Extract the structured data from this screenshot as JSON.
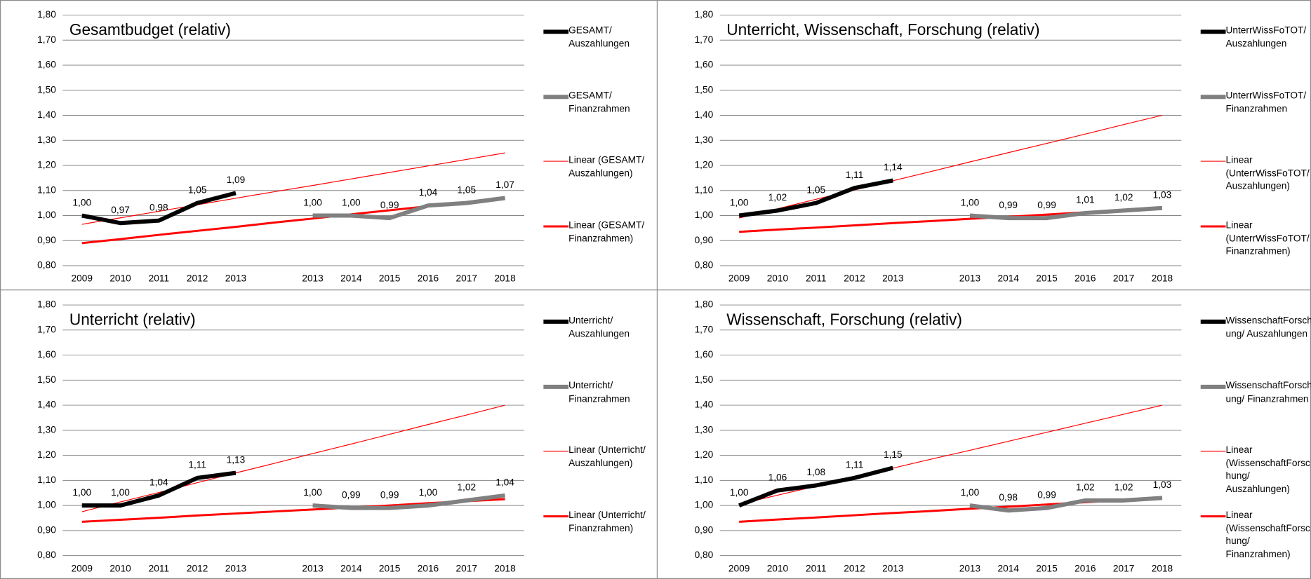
{
  "chart_data": [
    {
      "type": "line",
      "title": "Gesamtbudget (relativ)",
      "categories": [
        "2009",
        "2010",
        "2011",
        "2012",
        "2013",
        null,
        "2013",
        "2014",
        "2015",
        "2016",
        "2017",
        "2018"
      ],
      "ylim": [
        0.8,
        1.8
      ],
      "yticks": [
        {
          "value": 0.8,
          "label": "0,80"
        },
        {
          "value": 0.9,
          "label": "0,90"
        },
        {
          "value": 1.0,
          "label": "1,00"
        },
        {
          "value": 1.1,
          "label": "1,10"
        },
        {
          "value": 1.2,
          "label": "1,20"
        },
        {
          "value": 1.3,
          "label": "1,30"
        },
        {
          "value": 1.4,
          "label": "1,40"
        },
        {
          "value": 1.5,
          "label": "1,50"
        },
        {
          "value": 1.6,
          "label": "1,60"
        },
        {
          "value": 1.7,
          "label": "1,70"
        },
        {
          "value": 1.8,
          "label": "1,80"
        }
      ],
      "grid": true,
      "series": [
        {
          "name": "GESAMT/ Auszahlungen",
          "color": "#000000",
          "width": 5,
          "values": [
            1.0,
            0.97,
            0.98,
            1.05,
            1.09,
            null,
            null,
            null,
            null,
            null,
            null,
            null
          ],
          "value_labels": [
            "1,00",
            "0,97",
            "0,98",
            "1,05",
            "1,09",
            null,
            null,
            null,
            null,
            null,
            null,
            null
          ]
        },
        {
          "name": "GESAMT/ Finanzrahmen",
          "color": "#808080",
          "width": 5,
          "values": [
            null,
            null,
            null,
            null,
            null,
            null,
            1.0,
            1.0,
            0.99,
            1.04,
            1.05,
            1.07
          ],
          "value_labels": [
            null,
            null,
            null,
            null,
            null,
            null,
            "1,00",
            "1,00",
            "0,99",
            "1,04",
            "1,05",
            "1,07"
          ]
        },
        {
          "name": "Linear (GESAMT/ Auszahlungen)",
          "color": "#ff0000",
          "width": 1,
          "values": [
            0.965,
            0.991,
            1.017,
            1.043,
            1.069,
            1.095,
            1.12,
            1.146,
            1.172,
            1.198,
            1.224,
            1.25
          ]
        },
        {
          "name": "Linear (GESAMT/ Finanzrahmen)",
          "color": "#ff0000",
          "width": 2.5,
          "values": [
            0.89,
            0.906,
            0.923,
            0.939,
            0.955,
            0.972,
            0.988,
            1.005,
            1.021,
            1.037,
            1.054,
            1.07
          ]
        }
      ]
    },
    {
      "type": "line",
      "title": "Unterricht, Wissenschaft, Forschung (relativ)",
      "categories": [
        "2009",
        "2010",
        "2011",
        "2012",
        "2013",
        null,
        "2013",
        "2014",
        "2015",
        "2016",
        "2017",
        "2018"
      ],
      "ylim": [
        0.8,
        1.8
      ],
      "yticks": [
        {
          "value": 0.8,
          "label": "0,80"
        },
        {
          "value": 0.9,
          "label": "0,90"
        },
        {
          "value": 1.0,
          "label": "1,00"
        },
        {
          "value": 1.1,
          "label": "1,10"
        },
        {
          "value": 1.2,
          "label": "1,20"
        },
        {
          "value": 1.3,
          "label": "1,30"
        },
        {
          "value": 1.4,
          "label": "1,40"
        },
        {
          "value": 1.5,
          "label": "1,50"
        },
        {
          "value": 1.6,
          "label": "1,60"
        },
        {
          "value": 1.7,
          "label": "1,70"
        },
        {
          "value": 1.8,
          "label": "1,80"
        }
      ],
      "grid": true,
      "series": [
        {
          "name": "UnterrWissFoTOT/ Auszahlungen",
          "color": "#000000",
          "width": 5,
          "values": [
            1.0,
            1.02,
            1.05,
            1.11,
            1.14,
            null,
            null,
            null,
            null,
            null,
            null,
            null
          ],
          "value_labels": [
            "1,00",
            "1,02",
            "1,05",
            "1,11",
            "1,14",
            null,
            null,
            null,
            null,
            null,
            null,
            null
          ]
        },
        {
          "name": "UnterrWissFoTOT/ Finanzrahmen",
          "color": "#808080",
          "width": 5,
          "values": [
            null,
            null,
            null,
            null,
            null,
            null,
            1.0,
            0.99,
            0.99,
            1.01,
            1.02,
            1.03
          ],
          "value_labels": [
            null,
            null,
            null,
            null,
            null,
            null,
            "1,00",
            "0,99",
            "0,99",
            "1,01",
            "1,02",
            "1,03"
          ]
        },
        {
          "name": "Linear (UnterrWissFoTOT/ Auszahlungen)",
          "color": "#ff0000",
          "width": 1,
          "values": [
            0.99,
            1.027,
            1.065,
            1.102,
            1.139,
            1.176,
            1.214,
            1.251,
            1.288,
            1.325,
            1.363,
            1.4
          ]
        },
        {
          "name": "Linear (UnterrWissFoTOT/ Finanzrahmen)",
          "color": "#ff0000",
          "width": 2.5,
          "values": [
            0.935,
            0.944,
            0.952,
            0.961,
            0.97,
            0.978,
            0.987,
            0.995,
            1.004,
            1.013,
            1.021,
            1.03
          ]
        }
      ]
    },
    {
      "type": "line",
      "title": "Unterricht (relativ)",
      "categories": [
        "2009",
        "2010",
        "2011",
        "2012",
        "2013",
        null,
        "2013",
        "2014",
        "2015",
        "2016",
        "2017",
        "2018"
      ],
      "ylim": [
        0.8,
        1.8
      ],
      "yticks": [
        {
          "value": 0.8,
          "label": "0,80"
        },
        {
          "value": 0.9,
          "label": "0,90"
        },
        {
          "value": 1.0,
          "label": "1,00"
        },
        {
          "value": 1.1,
          "label": "1,10"
        },
        {
          "value": 1.2,
          "label": "1,20"
        },
        {
          "value": 1.3,
          "label": "1,30"
        },
        {
          "value": 1.4,
          "label": "1,40"
        },
        {
          "value": 1.5,
          "label": "1,50"
        },
        {
          "value": 1.6,
          "label": "1,60"
        },
        {
          "value": 1.7,
          "label": "1,70"
        },
        {
          "value": 1.8,
          "label": "1,80"
        }
      ],
      "grid": true,
      "series": [
        {
          "name": "Unterricht/ Auszahlungen",
          "color": "#000000",
          "width": 5,
          "values": [
            1.0,
            1.0,
            1.04,
            1.11,
            1.13,
            null,
            null,
            null,
            null,
            null,
            null,
            null
          ],
          "value_labels": [
            "1,00",
            "1,00",
            "1,04",
            "1,11",
            "1,13",
            null,
            null,
            null,
            null,
            null,
            null,
            null
          ]
        },
        {
          "name": "Unterricht/ Finanzrahmen",
          "color": "#808080",
          "width": 5,
          "values": [
            null,
            null,
            null,
            null,
            null,
            null,
            1.0,
            0.99,
            0.99,
            1.0,
            1.02,
            1.04
          ],
          "value_labels": [
            null,
            null,
            null,
            null,
            null,
            null,
            "1,00",
            "0,99",
            "0,99",
            "1,00",
            "1,02",
            "1,04"
          ]
        },
        {
          "name": "Linear (Unterricht/ Auszahlungen)",
          "color": "#ff0000",
          "width": 1,
          "values": [
            0.975,
            1.014,
            1.052,
            1.091,
            1.13,
            1.168,
            1.207,
            1.245,
            1.284,
            1.323,
            1.361,
            1.4
          ]
        },
        {
          "name": "Linear (Unterricht/ Finanzrahmen)",
          "color": "#ff0000",
          "width": 2.5,
          "values": [
            0.935,
            0.943,
            0.951,
            0.96,
            0.968,
            0.976,
            0.984,
            0.992,
            1.0,
            1.009,
            1.017,
            1.025
          ]
        }
      ]
    },
    {
      "type": "line",
      "title": "Wissenschaft, Forschung (relativ)",
      "categories": [
        "2009",
        "2010",
        "2011",
        "2012",
        "2013",
        null,
        "2013",
        "2014",
        "2015",
        "2016",
        "2017",
        "2018"
      ],
      "ylim": [
        0.8,
        1.8
      ],
      "yticks": [
        {
          "value": 0.8,
          "label": "0,80"
        },
        {
          "value": 0.9,
          "label": "0,90"
        },
        {
          "value": 1.0,
          "label": "1,00"
        },
        {
          "value": 1.1,
          "label": "1,10"
        },
        {
          "value": 1.2,
          "label": "1,20"
        },
        {
          "value": 1.3,
          "label": "1,30"
        },
        {
          "value": 1.4,
          "label": "1,40"
        },
        {
          "value": 1.5,
          "label": "1,50"
        },
        {
          "value": 1.6,
          "label": "1,60"
        },
        {
          "value": 1.7,
          "label": "1,70"
        },
        {
          "value": 1.8,
          "label": "1,80"
        }
      ],
      "grid": true,
      "series": [
        {
          "name": "WissenschaftForschung/ Auszahlungen",
          "color": "#000000",
          "width": 5,
          "values": [
            1.0,
            1.06,
            1.08,
            1.11,
            1.15,
            null,
            null,
            null,
            null,
            null,
            null,
            null
          ],
          "value_labels": [
            "1,00",
            "1,06",
            "1,08",
            "1,11",
            "1,15",
            null,
            null,
            null,
            null,
            null,
            null,
            null
          ]
        },
        {
          "name": "WissenschaftForschung/ Finanzrahmen",
          "color": "#808080",
          "width": 5,
          "values": [
            null,
            null,
            null,
            null,
            null,
            null,
            1.0,
            0.98,
            0.99,
            1.02,
            1.02,
            1.03
          ],
          "value_labels": [
            null,
            null,
            null,
            null,
            null,
            null,
            "1,00",
            "0,98",
            "0,99",
            "1,02",
            "1,02",
            "1,03"
          ]
        },
        {
          "name": "Linear (WissenschaftForschung/ Auszahlungen)",
          "color": "#ff0000",
          "width": 1,
          "values": [
            1.005,
            1.041,
            1.077,
            1.113,
            1.149,
            1.185,
            1.22,
            1.256,
            1.292,
            1.328,
            1.364,
            1.4
          ]
        },
        {
          "name": "Linear (WissenschaftForschung/ Finanzrahmen)",
          "color": "#ff0000",
          "width": 2.5,
          "values": [
            0.935,
            0.944,
            0.952,
            0.961,
            0.97,
            0.978,
            0.987,
            0.995,
            1.004,
            1.013,
            1.021,
            1.03
          ]
        }
      ]
    }
  ]
}
